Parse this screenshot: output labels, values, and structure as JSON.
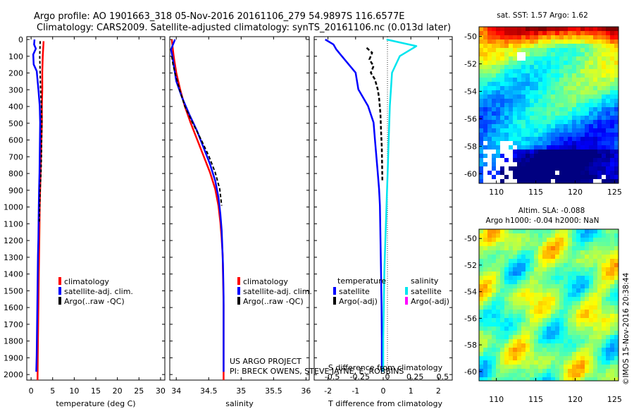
{
  "header": {
    "line1": "Argo profile: AO 1901663_318 05-Nov-2016 20161106_279 54.9897S 116.6577E",
    "line2": "Climatology: CARS2009. Satellite-adjusted climatology: synTS_20161106.nc (0.013d later)"
  },
  "depth_ticks": [
    "0",
    "100",
    "200",
    "300",
    "400",
    "500",
    "600",
    "700",
    "800",
    "900",
    "1000",
    "1100",
    "1200",
    "1300",
    "1400",
    "1500",
    "1600",
    "1700",
    "1800",
    "1900",
    "2000"
  ],
  "colors": {
    "climatology": "#ff0000",
    "satellite": "#0000ff",
    "argo": "#000000",
    "sat_salinity": "#00e5ee",
    "argo_salinity": "#ff00ff"
  },
  "panel1": {
    "xlabel": "temperature (deg C)",
    "xticks": [
      "0",
      "5",
      "10",
      "15",
      "20",
      "25",
      "30"
    ],
    "legend": [
      "climatology",
      "satellite-adj. clim.",
      "Argo(..raw -QC)"
    ]
  },
  "panel2": {
    "xlabel": "salinity",
    "xticks": [
      "34",
      "34.5",
      "35",
      "35.5",
      "36"
    ],
    "legend": [
      "climatology",
      "satellite-adj. clim.",
      "Argo(..raw -QC)"
    ],
    "credits1": "US ARGO PROJECT",
    "credits2": "PI: BRECK OWENS, STEVE JAYNE, E. ROBBINS"
  },
  "panel3": {
    "xlabel": "T difference from climatology",
    "s_label": "S difference from climatology",
    "xticks": [
      "-2",
      "-1",
      "0",
      "1",
      "2"
    ],
    "sticks": [
      "-0.5",
      "-0.25",
      "0",
      "0.25",
      "0.5"
    ],
    "legend_t_title": "temperature",
    "legend_s_title": "salinity",
    "legend_t": [
      "satellite",
      "Argo(-adj)"
    ],
    "legend_s": [
      "satellite",
      "Argo(-adj)"
    ]
  },
  "map1": {
    "title": "sat. SST: 1.57 Argo: 1.62",
    "yticks": [
      "-50",
      "-52",
      "-54",
      "-56",
      "-58",
      "-60"
    ],
    "xticks": [
      "110",
      "115",
      "120",
      "125"
    ]
  },
  "map2": {
    "title1": "Altim. SLA: -0.088",
    "title2": "Argo h1000: -0.04 h2000: NaN",
    "yticks": [
      "-50",
      "-52",
      "-54",
      "-56",
      "-58",
      "-60"
    ],
    "xticks": [
      "110",
      "115",
      "120",
      "125"
    ]
  },
  "footer": "©IMOS 15-Nov-2016 20:38:44",
  "chart_data": [
    {
      "type": "line",
      "name": "temperature profile",
      "xlabel": "temperature (deg C)",
      "ylabel": "",
      "xlim": [
        -1,
        31
      ],
      "ylim": [
        2050,
        0
      ],
      "series": [
        {
          "name": "climatology",
          "x": [
            2.9,
            2.7,
            2.6,
            2.6,
            2.5,
            2.5,
            2.4,
            2.3,
            2.2,
            2.1,
            2.0,
            1.95,
            1.9,
            1.85,
            1.8,
            1.75,
            1.7,
            1.65,
            1.6,
            1.55,
            1.5
          ],
          "y": [
            10,
            100,
            200,
            300,
            400,
            500,
            600,
            700,
            800,
            900,
            1000,
            1100,
            1200,
            1300,
            1400,
            1500,
            1600,
            1700,
            1800,
            1900,
            2050
          ]
        },
        {
          "name": "satellite-adj. clim.",
          "x": [
            0.8,
            0.7,
            1.1,
            0.5,
            0.6,
            1.3,
            1.7,
            2.0,
            2.1,
            2.05,
            2.0,
            1.95,
            1.85,
            1.8,
            1.75,
            1.7,
            1.6,
            1.55,
            1.5,
            1.45,
            1.4,
            1.35,
            1.3,
            1.2
          ],
          "y": [
            0,
            30,
            55,
            90,
            150,
            190,
            300,
            400,
            500,
            600,
            700,
            800,
            900,
            1000,
            1100,
            1200,
            1300,
            1400,
            1500,
            1600,
            1700,
            1800,
            1900,
            2000
          ]
        },
        {
          "name": "Argo(..raw -QC)",
          "x": [
            2.1,
            2.0,
            2.1,
            2.2,
            2.4,
            2.5,
            2.45,
            2.4,
            2.3,
            2.1,
            2.0,
            1.9
          ],
          "y": [
            10,
            100,
            200,
            300,
            400,
            500,
            600,
            700,
            800,
            900,
            1000,
            1100
          ]
        }
      ]
    },
    {
      "type": "line",
      "name": "salinity profile",
      "xlabel": "salinity",
      "ylabel": "",
      "xlim": [
        33.9,
        36.05
      ],
      "ylim": [
        2050,
        0
      ],
      "series": [
        {
          "name": "climatology",
          "x": [
            33.93,
            33.96,
            34.0,
            34.06,
            34.13,
            34.22,
            34.32,
            34.42,
            34.52,
            34.6,
            34.65,
            34.68,
            34.7,
            34.715,
            34.72,
            34.725,
            34.73,
            34.73,
            34.73,
            34.73,
            34.73,
            34.73
          ],
          "y": [
            0,
            100,
            200,
            300,
            400,
            500,
            600,
            700,
            800,
            900,
            1000,
            1100,
            1200,
            1300,
            1400,
            1500,
            1600,
            1700,
            1800,
            1900,
            2000,
            2050
          ]
        },
        {
          "name": "satellite-adj. clim.",
          "x": [
            33.98,
            33.92,
            33.94,
            33.96,
            34.0,
            34.09,
            34.2,
            34.32,
            34.42,
            34.52,
            34.6,
            34.65,
            34.68,
            34.7,
            34.71,
            34.72,
            34.725,
            34.73,
            34.73,
            34.73,
            34.73,
            34.73,
            34.73
          ],
          "y": [
            0,
            60,
            100,
            150,
            250,
            350,
            450,
            550,
            650,
            750,
            850,
            950,
            1050,
            1150,
            1250,
            1350,
            1450,
            1550,
            1650,
            1750,
            1850,
            1950,
            2000
          ]
        },
        {
          "name": "Argo(..raw -QC)",
          "x": [
            33.93,
            33.95,
            33.98,
            34.05,
            34.13,
            34.25,
            34.38,
            34.5,
            34.6,
            34.67,
            34.7
          ],
          "y": [
            100,
            150,
            200,
            300,
            400,
            500,
            600,
            700,
            800,
            900,
            1000
          ]
        }
      ]
    },
    {
      "type": "line",
      "name": "difference from climatology",
      "xlabel": "T difference from climatology",
      "ylabel": "",
      "xlim": [
        -2.5,
        2.5
      ],
      "ylim": [
        2050,
        0
      ],
      "series": [
        {
          "name": "temperature satellite",
          "x": [
            -2.1,
            -1.8,
            -1.7,
            -1.5,
            -1.0,
            -0.9,
            -0.55,
            -0.35,
            -0.3,
            -0.25,
            -0.2,
            -0.15,
            -0.12,
            -0.1,
            -0.08,
            -0.06,
            -0.05,
            -0.05
          ],
          "y": [
            0,
            30,
            60,
            100,
            200,
            300,
            400,
            500,
            600,
            700,
            800,
            900,
            1000,
            1200,
            1400,
            1600,
            1800,
            2000
          ]
        },
        {
          "name": "temperature Argo(-adj)",
          "x": [
            -0.6,
            -0.4,
            -0.5,
            -0.35,
            -0.45,
            -0.3,
            -0.2,
            -0.15,
            -0.1,
            -0.08,
            -0.05,
            -0.04,
            -0.03
          ],
          "y": [
            50,
            80,
            120,
            160,
            200,
            240,
            300,
            350,
            450,
            550,
            650,
            750,
            850
          ]
        },
        {
          "name": "salinity satellite",
          "x": [
            0.03,
            0.3,
            0.15,
            0.08,
            0.06,
            0.05,
            0.04,
            0.03,
            0.02,
            0.01,
            0.005,
            0.0,
            0.0
          ],
          "y": [
            0,
            40,
            100,
            200,
            400,
            600,
            800,
            1000,
            1200,
            1400,
            1600,
            1800,
            2000
          ]
        }
      ]
    }
  ]
}
